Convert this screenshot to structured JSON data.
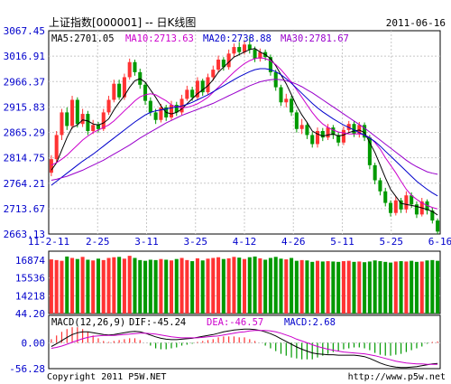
{
  "header": {
    "title": "上证指数[000001] -- 日K线图",
    "date": "2011-06-16"
  },
  "footer": {
    "copyright": "Copyright 2011 P5W.NET",
    "url": "http://www.p5w.net"
  },
  "colors": {
    "up": "#ff3333",
    "down": "#009900",
    "ma5": "#000000",
    "ma10": "#cc00cc",
    "ma20": "#0000cc",
    "ma30": "#9900cc",
    "axis_text": "#0000cc",
    "grid": "#c8c8c8"
  },
  "chart_data": [
    {
      "type": "candlestick",
      "title": "上证指数[000001] -- 日K线图",
      "legend": [
        {
          "label": "MA5:2701.05",
          "color": "#000000"
        },
        {
          "label": "MA10:2713.63",
          "color": "#cc00cc"
        },
        {
          "label": "MA20:2738.88",
          "color": "#0000cc"
        },
        {
          "label": "MA30:2781.67",
          "color": "#9900cc"
        }
      ],
      "yticks": [
        "3067.45",
        "3016.91",
        "2966.37",
        "2915.83",
        "2865.29",
        "2814.75",
        "2764.21",
        "2713.67",
        "2663.13"
      ],
      "ylim": [
        2663.13,
        3067.45
      ],
      "xticks": [
        "11-2-11",
        "2-25",
        "3-11",
        "3-25",
        "4-12",
        "4-26",
        "5-11",
        "5-25",
        "6-16"
      ],
      "grid": true,
      "candles": [
        {
          "o": 2785,
          "c": 2812,
          "h": 2820,
          "l": 2778
        },
        {
          "o": 2812,
          "c": 2860,
          "h": 2868,
          "l": 2805
        },
        {
          "o": 2860,
          "c": 2905,
          "h": 2912,
          "l": 2850
        },
        {
          "o": 2905,
          "c": 2878,
          "h": 2915,
          "l": 2870
        },
        {
          "o": 2878,
          "c": 2930,
          "h": 2938,
          "l": 2872
        },
        {
          "o": 2930,
          "c": 2882,
          "h": 2935,
          "l": 2875
        },
        {
          "o": 2882,
          "c": 2902,
          "h": 2912,
          "l": 2876
        },
        {
          "o": 2902,
          "c": 2868,
          "h": 2908,
          "l": 2860
        },
        {
          "o": 2868,
          "c": 2880,
          "h": 2890,
          "l": 2862
        },
        {
          "o": 2880,
          "c": 2872,
          "h": 2886,
          "l": 2865
        },
        {
          "o": 2872,
          "c": 2905,
          "h": 2912,
          "l": 2868
        },
        {
          "o": 2905,
          "c": 2930,
          "h": 2938,
          "l": 2900
        },
        {
          "o": 2930,
          "c": 2962,
          "h": 2970,
          "l": 2925
        },
        {
          "o": 2962,
          "c": 2935,
          "h": 2970,
          "l": 2930
        },
        {
          "o": 2935,
          "c": 2975,
          "h": 2982,
          "l": 2930
        },
        {
          "o": 2975,
          "c": 3005,
          "h": 3012,
          "l": 2970
        },
        {
          "o": 3005,
          "c": 2985,
          "h": 3010,
          "l": 2978
        },
        {
          "o": 2985,
          "c": 2960,
          "h": 2992,
          "l": 2952
        },
        {
          "o": 2960,
          "c": 2928,
          "h": 2965,
          "l": 2920
        },
        {
          "o": 2928,
          "c": 2905,
          "h": 2935,
          "l": 2898
        },
        {
          "o": 2905,
          "c": 2890,
          "h": 2912,
          "l": 2882
        },
        {
          "o": 2890,
          "c": 2915,
          "h": 2922,
          "l": 2885
        },
        {
          "o": 2915,
          "c": 2895,
          "h": 2920,
          "l": 2888
        },
        {
          "o": 2895,
          "c": 2920,
          "h": 2928,
          "l": 2890
        },
        {
          "o": 2920,
          "c": 2905,
          "h": 2926,
          "l": 2898
        },
        {
          "o": 2905,
          "c": 2932,
          "h": 2940,
          "l": 2900
        },
        {
          "o": 2932,
          "c": 2950,
          "h": 2958,
          "l": 2928
        },
        {
          "o": 2950,
          "c": 2935,
          "h": 2956,
          "l": 2928
        },
        {
          "o": 2935,
          "c": 2968,
          "h": 2975,
          "l": 2930
        },
        {
          "o": 2968,
          "c": 2945,
          "h": 2972,
          "l": 2938
        },
        {
          "o": 2945,
          "c": 2975,
          "h": 2982,
          "l": 2940
        },
        {
          "o": 2975,
          "c": 2990,
          "h": 2998,
          "l": 2968
        },
        {
          "o": 2990,
          "c": 3010,
          "h": 3018,
          "l": 2985
        },
        {
          "o": 3010,
          "c": 2995,
          "h": 3015,
          "l": 2988
        },
        {
          "o": 2995,
          "c": 3022,
          "h": 3030,
          "l": 2990
        },
        {
          "o": 3022,
          "c": 3035,
          "h": 3042,
          "l": 3015
        },
        {
          "o": 3035,
          "c": 3025,
          "h": 3045,
          "l": 3018
        },
        {
          "o": 3025,
          "c": 3040,
          "h": 3048,
          "l": 3020
        },
        {
          "o": 3040,
          "c": 3030,
          "h": 3055,
          "l": 3022
        },
        {
          "o": 3030,
          "c": 3012,
          "h": 3036,
          "l": 3005
        },
        {
          "o": 3012,
          "c": 3025,
          "h": 3032,
          "l": 3006
        },
        {
          "o": 3025,
          "c": 3015,
          "h": 3030,
          "l": 3008
        },
        {
          "o": 3015,
          "c": 2985,
          "h": 3020,
          "l": 2978
        },
        {
          "o": 2985,
          "c": 2955,
          "h": 2990,
          "l": 2948
        },
        {
          "o": 2955,
          "c": 2925,
          "h": 2960,
          "l": 2918
        },
        {
          "o": 2925,
          "c": 2932,
          "h": 2942,
          "l": 2915
        },
        {
          "o": 2932,
          "c": 2905,
          "h": 2938,
          "l": 2898
        },
        {
          "o": 2905,
          "c": 2872,
          "h": 2910,
          "l": 2865
        },
        {
          "o": 2872,
          "c": 2880,
          "h": 2892,
          "l": 2862
        },
        {
          "o": 2880,
          "c": 2860,
          "h": 2886,
          "l": 2852
        },
        {
          "o": 2860,
          "c": 2842,
          "h": 2866,
          "l": 2835
        },
        {
          "o": 2842,
          "c": 2868,
          "h": 2875,
          "l": 2835
        },
        {
          "o": 2868,
          "c": 2855,
          "h": 2874,
          "l": 2848
        },
        {
          "o": 2855,
          "c": 2875,
          "h": 2882,
          "l": 2850
        },
        {
          "o": 2875,
          "c": 2860,
          "h": 2880,
          "l": 2852
        },
        {
          "o": 2860,
          "c": 2845,
          "h": 2866,
          "l": 2838
        },
        {
          "o": 2845,
          "c": 2870,
          "h": 2877,
          "l": 2840
        },
        {
          "o": 2870,
          "c": 2882,
          "h": 2888,
          "l": 2864
        },
        {
          "o": 2882,
          "c": 2862,
          "h": 2888,
          "l": 2856
        },
        {
          "o": 2862,
          "c": 2880,
          "h": 2886,
          "l": 2855
        },
        {
          "o": 2880,
          "c": 2855,
          "h": 2885,
          "l": 2848
        },
        {
          "o": 2855,
          "c": 2800,
          "h": 2860,
          "l": 2792
        },
        {
          "o": 2800,
          "c": 2770,
          "h": 2805,
          "l": 2762
        },
        {
          "o": 2770,
          "c": 2748,
          "h": 2775,
          "l": 2740
        },
        {
          "o": 2748,
          "c": 2725,
          "h": 2755,
          "l": 2718
        },
        {
          "o": 2725,
          "c": 2705,
          "h": 2730,
          "l": 2698
        },
        {
          "o": 2705,
          "c": 2730,
          "h": 2738,
          "l": 2700
        },
        {
          "o": 2730,
          "c": 2712,
          "h": 2735,
          "l": 2705
        },
        {
          "o": 2712,
          "c": 2740,
          "h": 2748,
          "l": 2705
        },
        {
          "o": 2740,
          "c": 2722,
          "h": 2746,
          "l": 2715
        },
        {
          "o": 2722,
          "c": 2702,
          "h": 2728,
          "l": 2695
        },
        {
          "o": 2702,
          "c": 2728,
          "h": 2735,
          "l": 2698
        },
        {
          "o": 2728,
          "c": 2710,
          "h": 2732,
          "l": 2702
        },
        {
          "o": 2710,
          "c": 2690,
          "h": 2716,
          "l": 2684
        },
        {
          "o": 2690,
          "c": 2668,
          "h": 2694,
          "l": 2663
        }
      ],
      "ma5": [
        2790,
        2805,
        2830,
        2855,
        2875,
        2880,
        2890,
        2888,
        2882,
        2880,
        2884,
        2892,
        2910,
        2925,
        2938,
        2955,
        2968,
        2972,
        2965,
        2950,
        2935,
        2918,
        2905,
        2902,
        2905,
        2912,
        2922,
        2932,
        2942,
        2950,
        2958,
        2970,
        2985,
        2995,
        3005,
        3015,
        3020,
        3025,
        3030,
        3032,
        3025,
        3020,
        3012,
        2998,
        2980,
        2962,
        2940,
        2918,
        2900,
        2885,
        2868,
        2862,
        2858,
        2860,
        2862,
        2858,
        2860,
        2865,
        2868,
        2870,
        2865,
        2845,
        2825,
        2800,
        2775,
        2752,
        2738,
        2724,
        2722,
        2720,
        2718,
        2715,
        2712,
        2708,
        2701
      ],
      "ma10": [
        2800,
        2805,
        2812,
        2820,
        2830,
        2840,
        2850,
        2858,
        2865,
        2870,
        2875,
        2880,
        2888,
        2898,
        2908,
        2918,
        2928,
        2936,
        2940,
        2942,
        2940,
        2934,
        2928,
        2920,
        2916,
        2914,
        2915,
        2918,
        2922,
        2928,
        2935,
        2945,
        2955,
        2965,
        2975,
        2985,
        2994,
        3002,
        3008,
        3012,
        3014,
        3012,
        3008,
        3000,
        2990,
        2978,
        2965,
        2950,
        2935,
        2920,
        2905,
        2892,
        2882,
        2875,
        2870,
        2866,
        2864,
        2862,
        2862,
        2862,
        2860,
        2855,
        2845,
        2832,
        2815,
        2800,
        2785,
        2768,
        2752,
        2740,
        2732,
        2725,
        2720,
        2716,
        2713
      ],
      "ma20": [
        2760,
        2768,
        2776,
        2784,
        2792,
        2800,
        2808,
        2815,
        2822,
        2830,
        2838,
        2846,
        2854,
        2862,
        2870,
        2878,
        2886,
        2893,
        2900,
        2905,
        2908,
        2910,
        2912,
        2914,
        2916,
        2918,
        2921,
        2925,
        2930,
        2935,
        2940,
        2946,
        2952,
        2958,
        2964,
        2970,
        2976,
        2981,
        2986,
        2990,
        2992,
        2992,
        2990,
        2986,
        2980,
        2972,
        2963,
        2953,
        2943,
        2933,
        2923,
        2914,
        2906,
        2899,
        2892,
        2886,
        2880,
        2875,
        2870,
        2865,
        2860,
        2854,
        2847,
        2838,
        2828,
        2818,
        2808,
        2798,
        2788,
        2778,
        2768,
        2760,
        2752,
        2745,
        2739
      ],
      "ma30": [
        2770,
        2772,
        2775,
        2778,
        2782,
        2786,
        2790,
        2795,
        2800,
        2805,
        2810,
        2816,
        2822,
        2828,
        2834,
        2840,
        2847,
        2854,
        2860,
        2866,
        2872,
        2878,
        2884,
        2889,
        2894,
        2899,
        2903,
        2907,
        2911,
        2915,
        2919,
        2923,
        2928,
        2933,
        2938,
        2943,
        2948,
        2953,
        2958,
        2962,
        2966,
        2968,
        2970,
        2971,
        2970,
        2968,
        2965,
        2961,
        2956,
        2950,
        2944,
        2937,
        2930,
        2923,
        2916,
        2909,
        2902,
        2895,
        2888,
        2881,
        2874,
        2866,
        2858,
        2850,
        2842,
        2834,
        2826,
        2818,
        2810,
        2803,
        2797,
        2792,
        2787,
        2784,
        2782
      ]
    },
    {
      "type": "bar",
      "title": "",
      "yticks": [
        "16874",
        "15536",
        "14218",
        "44.20"
      ],
      "ylim": [
        0,
        17500
      ],
      "values": [
        15200,
        15000,
        14800,
        16000,
        15600,
        15300,
        15900,
        15100,
        14900,
        15400,
        15000,
        15600,
        15800,
        15900,
        15400,
        16200,
        15600,
        15000,
        14800,
        15100,
        15000,
        15300,
        15100,
        14900,
        15300,
        15600,
        15000,
        14700,
        15500,
        14900,
        15400,
        15600,
        15800,
        15300,
        15500,
        15900,
        15700,
        15300,
        15800,
        16000,
        15500,
        15100,
        15600,
        15900,
        15400,
        15200,
        15600,
        14800,
        15000,
        14900,
        14500,
        14800,
        14600,
        14700,
        14600,
        14500,
        14700,
        14800,
        14500,
        14600,
        14400,
        14600,
        14900,
        14700,
        14500,
        14300,
        14600,
        14700,
        14600,
        14800,
        14500,
        14600,
        14900,
        15000,
        14800
      ]
    },
    {
      "type": "bar",
      "title": "",
      "legend": [
        {
          "label": "MACD(12,26,9)",
          "color": "#000000"
        },
        {
          "label": "DIF:-45.24",
          "color": "#000000"
        },
        {
          "label": "DEA:-46.57",
          "color": "#cc00cc"
        },
        {
          "label": "MACD:2.68",
          "color": "#0000cc"
        }
      ],
      "yticks": [
        "0.00",
        "-56.28"
      ],
      "ylim": [
        -56.28,
        60
      ],
      "dif": [
        -8,
        -2,
        5,
        12,
        18,
        22,
        24,
        24,
        22,
        20,
        18,
        17,
        18,
        20,
        22,
        24,
        25,
        24,
        21,
        17,
        13,
        10,
        8,
        7,
        7,
        8,
        9,
        10,
        12,
        14,
        16,
        18,
        21,
        24,
        26,
        28,
        29,
        30,
        30,
        29,
        27,
        24,
        20,
        15,
        9,
        3,
        -3,
        -9,
        -14,
        -18,
        -22,
        -24,
        -25,
        -26,
        -26,
        -27,
        -27,
        -27,
        -27,
        -28,
        -30,
        -34,
        -39,
        -44,
        -48,
        -51,
        -53,
        -54,
        -54,
        -53,
        -52,
        -50,
        -48,
        -46,
        -45
      ],
      "dea": [
        -12,
        -10,
        -7,
        -3,
        1,
        5,
        9,
        12,
        14,
        15,
        16,
        16,
        16,
        17,
        18,
        19,
        20,
        21,
        21,
        20,
        19,
        17,
        15,
        13,
        12,
        11,
        11,
        11,
        11,
        12,
        13,
        14,
        15,
        17,
        19,
        21,
        23,
        24,
        26,
        27,
        27,
        27,
        26,
        24,
        21,
        17,
        13,
        8,
        4,
        0,
        -4,
        -8,
        -11,
        -14,
        -16,
        -18,
        -20,
        -21,
        -22,
        -23,
        -24,
        -26,
        -28,
        -31,
        -34,
        -37,
        -40,
        -42,
        -44,
        -45,
        -46,
        -46,
        -47,
        -47,
        -47
      ],
      "macd": [
        8,
        16,
        24,
        30,
        34,
        34,
        30,
        24,
        16,
        10,
        4,
        2,
        4,
        6,
        8,
        10,
        10,
        6,
        0,
        -6,
        -12,
        -14,
        -14,
        -12,
        -10,
        -6,
        -4,
        -2,
        2,
        4,
        6,
        8,
        12,
        14,
        14,
        14,
        12,
        12,
        8,
        4,
        0,
        -6,
        -12,
        -18,
        -24,
        -28,
        -32,
        -34,
        -36,
        -36,
        -36,
        -32,
        -28,
        -24,
        -20,
        -18,
        -14,
        -12,
        -10,
        -10,
        -12,
        -16,
        -22,
        -26,
        -28,
        -28,
        -26,
        -24,
        -20,
        -16,
        -12,
        -8,
        -2,
        2,
        3
      ]
    }
  ]
}
